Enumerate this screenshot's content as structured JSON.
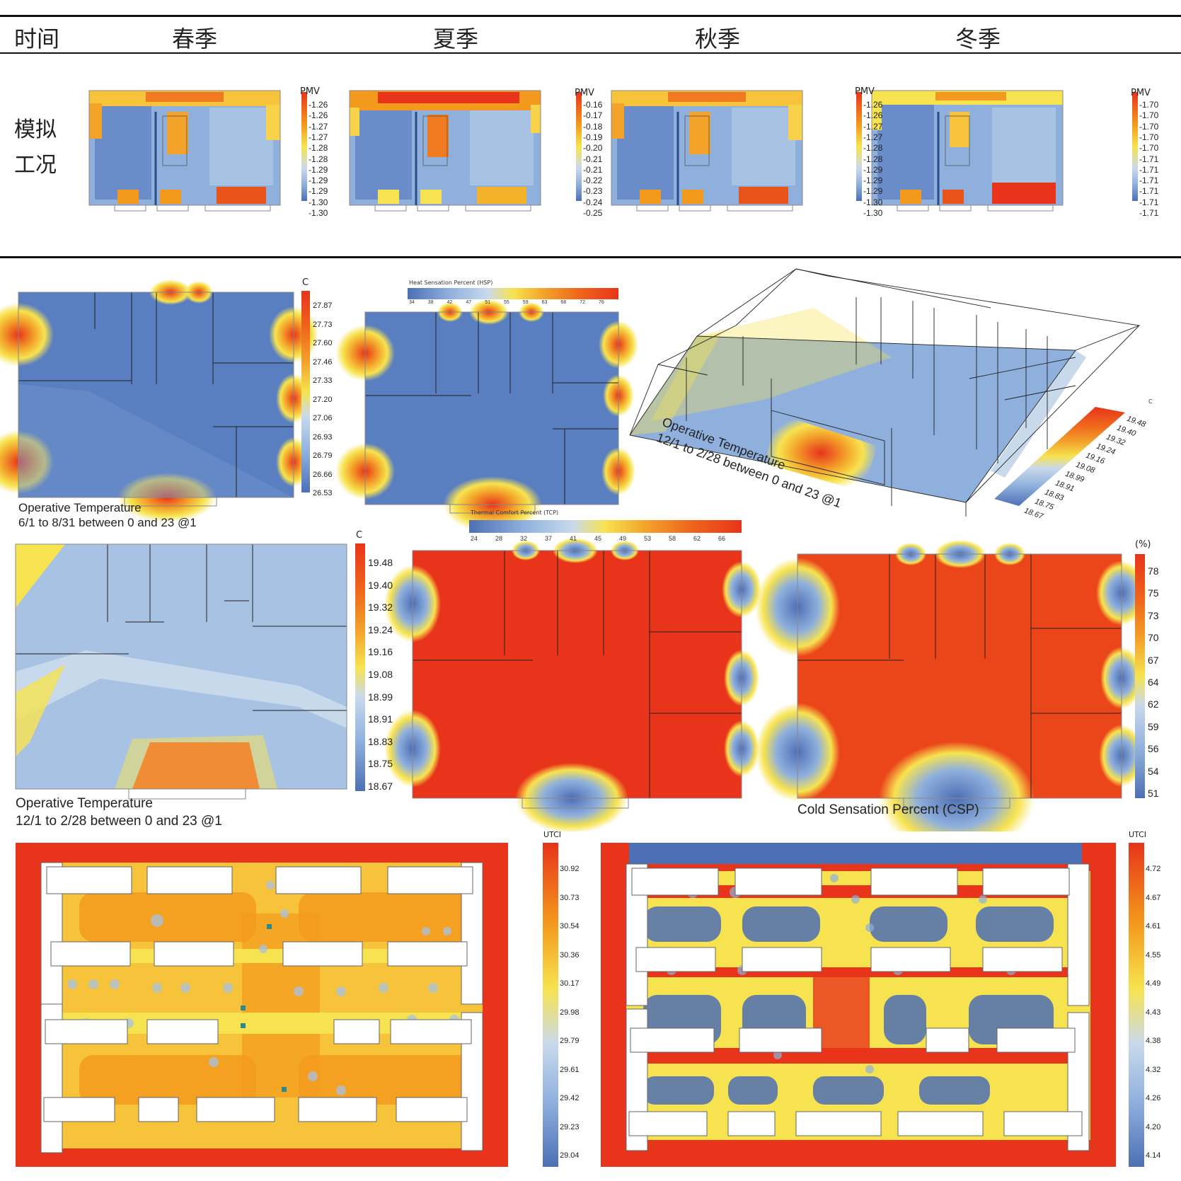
{
  "header": {
    "col0": "时间",
    "seasons": [
      "春季",
      "夏季",
      "秋季",
      "冬季"
    ]
  },
  "row_label": [
    "模拟",
    "工况"
  ],
  "pmv_panels": [
    {
      "title": "PMV",
      "ticks": [
        "-1.26",
        "-1.26",
        "-1.27",
        "-1.27",
        "-1.28",
        "-1.28",
        "-1.29",
        "-1.29",
        "-1.29",
        "-1.30",
        "-1.30"
      ]
    },
    {
      "title": "PMV",
      "ticks": [
        "-0.16",
        "-0.17",
        "-0.18",
        "-0.19",
        "-0.20",
        "-0.21",
        "-0.21",
        "-0.22",
        "-0.23",
        "-0.24",
        "-0.25"
      ]
    },
    {
      "title": "PMV",
      "ticks": [
        "-1.26",
        "-1.26",
        "-1.27",
        "-1.27",
        "-1.28",
        "-1.28",
        "-1.29",
        "-1.29",
        "-1.29",
        "-1.30",
        "-1.30"
      ]
    },
    {
      "title": "PMV",
      "ticks": [
        "-1.70",
        "-1.70",
        "-1.70",
        "-1.70",
        "-1.70",
        "-1.71",
        "-1.71",
        "-1.71",
        "-1.71",
        "-1.71",
        "-1.71"
      ]
    }
  ],
  "summer_op_temp": {
    "unit": "C",
    "ticks": [
      "27.87",
      "27.73",
      "27.60",
      "27.46",
      "27.33",
      "27.20",
      "27.06",
      "26.93",
      "26.79",
      "26.66",
      "26.53"
    ],
    "caption_1": "Operative Temperature",
    "caption_2": "6/1 to 8/31 between 0 and 23 @1"
  },
  "hsp": {
    "title": "Heat Sensation Percent (HSP)",
    "ticks": [
      "34",
      "38",
      "42",
      "47",
      "51",
      "55",
      "59",
      "63",
      "68",
      "72",
      "76"
    ]
  },
  "iso_view": {
    "unit": "C",
    "ticks": [
      "19.48",
      "19.40",
      "19.32",
      "19.24",
      "19.16",
      "19.08",
      "18.99",
      "18.91",
      "18.83",
      "18.75",
      "18.67"
    ],
    "caption_1": "Operative Temperature",
    "caption_2": "12/1 to 2/28 between 0 and 23 @1"
  },
  "winter_op_temp": {
    "unit": "C",
    "ticks": [
      "19.48",
      "19.40",
      "19.32",
      "19.24",
      "19.16",
      "19.08",
      "18.99",
      "18.91",
      "18.83",
      "18.75",
      "18.67"
    ],
    "caption_1": "Operative Temperature",
    "caption_2": "12/1 to 2/28 between 0 and 23 @1"
  },
  "tcp": {
    "title": "Thermal Comfort Percent (TCP)",
    "ticks": [
      "24",
      "28",
      "32",
      "37",
      "41",
      "45",
      "49",
      "53",
      "58",
      "62",
      "66"
    ]
  },
  "csp": {
    "unit": "(%)",
    "ticks": [
      "78",
      "75",
      "73",
      "70",
      "67",
      "64",
      "62",
      "59",
      "56",
      "54",
      "51"
    ],
    "caption": "Cold Sensation Percent (CSP)"
  },
  "utci_summer": {
    "title": "UTCI",
    "ticks": [
      "30.92",
      "30.73",
      "30.54",
      "30.36",
      "30.17",
      "29.98",
      "29.79",
      "29.61",
      "29.42",
      "29.23",
      "29.04"
    ]
  },
  "utci_winter": {
    "title": "UTCI",
    "ticks": [
      "4.72",
      "4.67",
      "4.61",
      "4.55",
      "4.49",
      "4.43",
      "4.38",
      "4.32",
      "4.26",
      "4.20",
      "4.14"
    ]
  },
  "colors": {
    "cold": "#4d6fb4",
    "cool": "#8fb0dd",
    "mild": "#c9d9ec",
    "warm": "#f7e34f",
    "hot": "#f39a1c",
    "veryhot": "#e8341a"
  }
}
